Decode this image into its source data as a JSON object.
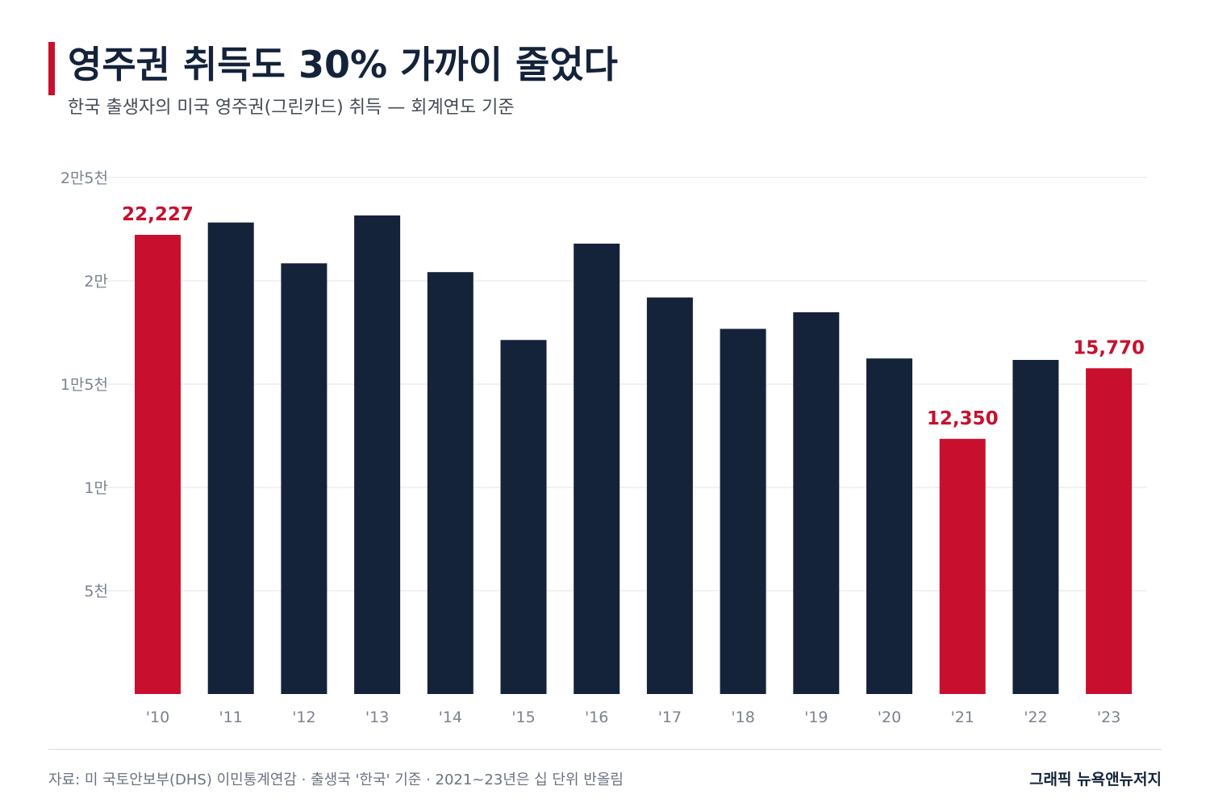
{
  "header": {
    "title": "영주권 취득도 30% 가까이 줄었다",
    "subtitle": "한국 출생자의 미국 영주권(그린카드) 취득 — 회계연도 기준"
  },
  "footer": {
    "source": "자료: 미 국토안보부(DHS) 이민통계연감 · 출생국 '한국' 기준 · 2021~23년은 십 단위 반올림",
    "credit": "그래픽 뉴욕앤뉴저지"
  },
  "colors": {
    "highlight": "#c8102e",
    "normal": "#14233a",
    "grid": "#e4e6ea",
    "tick_text": "#7b8290"
  },
  "chart_data": {
    "type": "bar",
    "categories": [
      "'10",
      "'11",
      "'12",
      "'13",
      "'14",
      "'15",
      "'16",
      "'17",
      "'18",
      "'19",
      "'20",
      "'21",
      "'22",
      "'23"
    ],
    "values": [
      22227,
      22824,
      20846,
      23166,
      20423,
      17138,
      21801,
      19194,
      17676,
      18479,
      16244,
      12350,
      16170,
      15770
    ],
    "highlighted": [
      true,
      false,
      false,
      false,
      false,
      false,
      false,
      false,
      false,
      false,
      false,
      true,
      false,
      true
    ],
    "data_labels": [
      "22,227",
      "",
      "",
      "",
      "",
      "",
      "",
      "",
      "",
      "",
      "",
      "12,350",
      "",
      "15,770"
    ],
    "ylim": [
      0,
      25000
    ],
    "yticks": [
      {
        "value": 5000,
        "label": "5천"
      },
      {
        "value": 10000,
        "label": "1만"
      },
      {
        "value": 15000,
        "label": "1만5천"
      },
      {
        "value": 20000,
        "label": "2만"
      },
      {
        "value": 25000,
        "label": "2만5천"
      }
    ],
    "grid": true,
    "xlabel": "",
    "ylabel": ""
  }
}
